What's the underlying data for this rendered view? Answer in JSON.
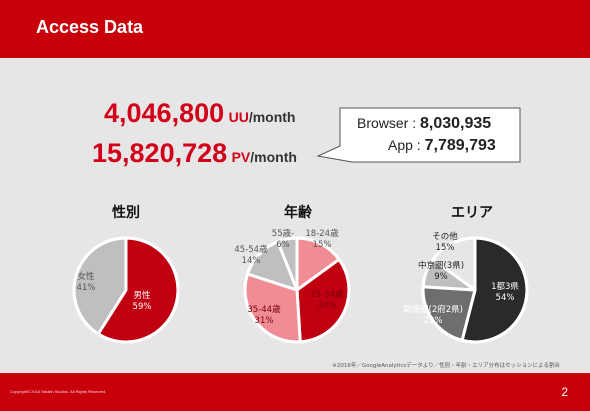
{
  "header": {
    "title": "Access Data"
  },
  "stats": {
    "uu_value": "4,046,800",
    "uu_unit_a": "UU",
    "uu_unit_b": "/month",
    "pv_value": "15,820,728",
    "pv_unit_a": "PV",
    "pv_unit_b": "/month"
  },
  "callout": {
    "browser_label": "Browser : ",
    "browser_value": "8,030,935",
    "app_label": "App : ",
    "app_value": "7,789,793"
  },
  "colors": {
    "brand_red": "#c8000a",
    "dark_red": "#c00010",
    "pink": "#f08c94",
    "gray": "#bfbfbf",
    "dark_gray": "#6e6e6e",
    "charcoal": "#2a2a2a"
  },
  "chart_data": [
    {
      "type": "pie",
      "title": "性別",
      "slices": [
        {
          "label": "男性",
          "value": 59,
          "display": "59%",
          "color": "#c00010"
        },
        {
          "label": "女性",
          "value": 41,
          "display": "41%",
          "color": "#bfbfbf"
        }
      ]
    },
    {
      "type": "pie",
      "title": "年齢",
      "slices": [
        {
          "label": "18-24歳",
          "value": 15,
          "display": "15%",
          "color": "#f08c94"
        },
        {
          "label": "25-34歳",
          "value": 34,
          "display": "34%",
          "color": "#c00010"
        },
        {
          "label": "35-44歳",
          "value": 31,
          "display": "31%",
          "color": "#f08c94"
        },
        {
          "label": "45-54歳",
          "value": 14,
          "display": "14%",
          "color": "#bfbfbf"
        },
        {
          "label": "55歳-",
          "value": 6,
          "display": "6%",
          "color": "#bfbfbf"
        }
      ]
    },
    {
      "type": "pie",
      "title": "エリア",
      "slices": [
        {
          "label": "1都3県",
          "value": 54,
          "display": "54%",
          "color": "#2a2a2a"
        },
        {
          "label": "関西圏(2府2県)",
          "value": 22,
          "display": "22%",
          "color": "#6e6e6e"
        },
        {
          "label": "中京圏(3県)",
          "value": 9,
          "display": "9%",
          "color": "#bfbfbf"
        },
        {
          "label": "その他",
          "value": 15,
          "display": "15%",
          "color": "#e6e6e6"
        }
      ]
    }
  ],
  "note": "※2016年／GoogleAnalyticsデータより／性別・年齢・エリア分布はセッションによる割合",
  "footer": {
    "copyright": "Copyright© 2016 Stealth Studios. All Rights Reserved.",
    "page": "2"
  }
}
